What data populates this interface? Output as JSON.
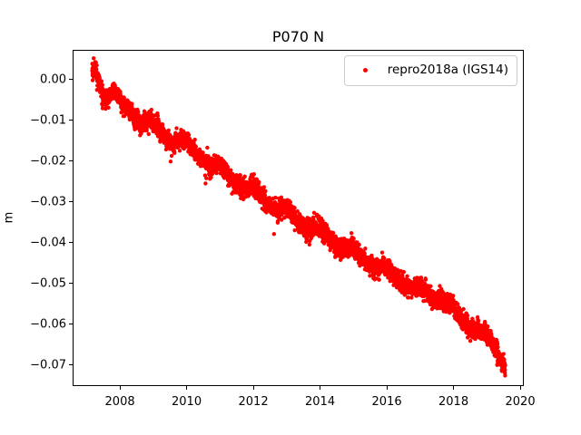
{
  "chart_data": {
    "type": "scatter",
    "title": "P070 N",
    "xlabel": "",
    "ylabel": "m",
    "grid": false,
    "background": "#ffffff",
    "axes_color": "#000000",
    "xlim": [
      2006.61,
      2020.08
    ],
    "ylim": [
      -0.075,
      0.0071
    ],
    "x_ticks": {
      "values": [
        2008,
        2010,
        2012,
        2014,
        2016,
        2018,
        2020
      ],
      "labels": [
        "2008",
        "2010",
        "2012",
        "2014",
        "2016",
        "2018",
        "2020"
      ]
    },
    "y_ticks": {
      "values": [
        0.0,
        -0.01,
        -0.02,
        -0.03,
        -0.04,
        -0.05,
        -0.06,
        -0.07
      ],
      "labels": [
        "0.00",
        "−0.01",
        "−0.02",
        "−0.03",
        "−0.04",
        "−0.05",
        "−0.06",
        "−0.07"
      ]
    },
    "legend": {
      "position": "upper right",
      "entries": [
        {
          "label": "repro2018a (IGS14)",
          "color": "#ff0000",
          "marker": "dot"
        }
      ]
    },
    "series": [
      {
        "name": "repro2018a (IGS14)",
        "color": "#ff0000",
        "marker": "dot",
        "marker_diameter_px": 4.4,
        "x_start": 2007.17,
        "x_end": 2019.55,
        "samples_per_year": 350,
        "noise_sigma_m": 0.0011,
        "trend_anchors": [
          [
            2007.17,
            0.0018
          ],
          [
            2007.25,
            0.0028
          ],
          [
            2007.35,
            0.0002
          ],
          [
            2007.45,
            -0.003
          ],
          [
            2007.58,
            -0.0048
          ],
          [
            2007.7,
            -0.004
          ],
          [
            2007.82,
            -0.0028
          ],
          [
            2007.95,
            -0.004
          ],
          [
            2008.1,
            -0.0063
          ],
          [
            2008.25,
            -0.0075
          ],
          [
            2008.42,
            -0.009
          ],
          [
            2008.58,
            -0.0108
          ],
          [
            2008.75,
            -0.0103
          ],
          [
            2008.9,
            -0.0095
          ],
          [
            2009.05,
            -0.011
          ],
          [
            2009.25,
            -0.0128
          ],
          [
            2009.45,
            -0.0152
          ],
          [
            2009.62,
            -0.016
          ],
          [
            2009.8,
            -0.014
          ],
          [
            2010.0,
            -0.015
          ],
          [
            2010.2,
            -0.017
          ],
          [
            2010.4,
            -0.0192
          ],
          [
            2010.6,
            -0.021
          ],
          [
            2010.78,
            -0.0215
          ],
          [
            2010.95,
            -0.0205
          ],
          [
            2011.15,
            -0.0222
          ],
          [
            2011.35,
            -0.0245
          ],
          [
            2011.55,
            -0.0262
          ],
          [
            2011.75,
            -0.0268
          ],
          [
            2011.95,
            -0.0258
          ],
          [
            2012.15,
            -0.0275
          ],
          [
            2012.35,
            -0.0298
          ],
          [
            2012.55,
            -0.0312
          ],
          [
            2012.75,
            -0.0318
          ],
          [
            2012.95,
            -0.0308
          ],
          [
            2013.15,
            -0.0325
          ],
          [
            2013.35,
            -0.035
          ],
          [
            2013.55,
            -0.0365
          ],
          [
            2013.75,
            -0.0368
          ],
          [
            2013.95,
            -0.0358
          ],
          [
            2014.15,
            -0.0375
          ],
          [
            2014.35,
            -0.0398
          ],
          [
            2014.55,
            -0.041
          ],
          [
            2014.75,
            -0.0418
          ],
          [
            2014.95,
            -0.0408
          ],
          [
            2015.15,
            -0.0425
          ],
          [
            2015.35,
            -0.0448
          ],
          [
            2015.55,
            -0.046
          ],
          [
            2015.75,
            -0.0465
          ],
          [
            2015.95,
            -0.0455
          ],
          [
            2016.15,
            -0.0472
          ],
          [
            2016.35,
            -0.0495
          ],
          [
            2016.55,
            -0.0508
          ],
          [
            2016.75,
            -0.0515
          ],
          [
            2016.95,
            -0.0508
          ],
          [
            2017.15,
            -0.052
          ],
          [
            2017.35,
            -0.0535
          ],
          [
            2017.55,
            -0.0542
          ],
          [
            2017.75,
            -0.0548
          ],
          [
            2017.95,
            -0.0555
          ],
          [
            2018.15,
            -0.0578
          ],
          [
            2018.35,
            -0.0598
          ],
          [
            2018.55,
            -0.0608
          ],
          [
            2018.75,
            -0.0612
          ],
          [
            2018.95,
            -0.0618
          ],
          [
            2019.15,
            -0.0645
          ],
          [
            2019.3,
            -0.0665
          ],
          [
            2019.42,
            -0.0688
          ],
          [
            2019.55,
            -0.0708
          ]
        ],
        "outliers": [
          [
            2009.52,
            -0.0201
          ],
          [
            2010.62,
            -0.0167
          ],
          [
            2012.02,
            -0.0232
          ],
          [
            2012.62,
            -0.0379
          ],
          [
            2016.98,
            -0.0487
          ]
        ]
      }
    ]
  }
}
